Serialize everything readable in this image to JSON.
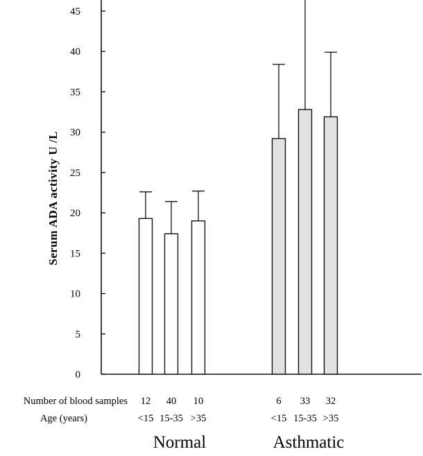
{
  "chart_data": {
    "type": "bar",
    "title": "",
    "ylabel": "Serum ADA activity U /L",
    "xlabel": "",
    "ylim": [
      0,
      45
    ],
    "yticks": [
      0,
      5,
      10,
      15,
      20,
      25,
      30,
      35,
      40,
      45
    ],
    "row_labels": [
      "Number of blood samples",
      "Age (years)"
    ],
    "groups": [
      {
        "name": "Normal",
        "fill": "#ffffff",
        "bars": [
          {
            "samples": "12",
            "age": "<15",
            "value": 19.3,
            "error": 3.3
          },
          {
            "samples": "40",
            "age": "15-35",
            "value": 17.4,
            "error": 4.0
          },
          {
            "samples": "10",
            "age": ">35",
            "value": 19.0,
            "error": 3.7
          }
        ]
      },
      {
        "name": "Asthmatic",
        "fill": "#e2e2e2",
        "bars": [
          {
            "samples": "6",
            "age": "<15",
            "value": 29.2,
            "error": 9.2
          },
          {
            "samples": "33",
            "age": "15-35",
            "value": 32.8,
            "error": 14.0
          },
          {
            "samples": "32",
            "age": ">35",
            "value": 31.9,
            "error": 8.0
          }
        ]
      }
    ]
  }
}
